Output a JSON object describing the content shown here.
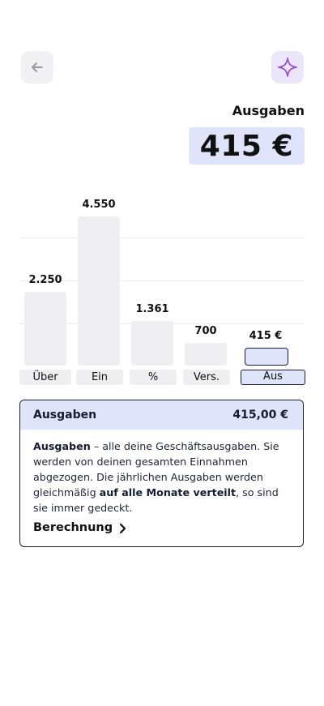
{
  "header": {
    "back_icon": "arrow-left-icon",
    "ai_icon": "sparkle-icon",
    "title": "Ausgaben",
    "amount": "415 €"
  },
  "chart_data": {
    "type": "bar",
    "categories": [
      "Über",
      "Ein",
      "%",
      "Vers.",
      "Aus"
    ],
    "values": [
      2250,
      4550,
      1361,
      700,
      415
    ],
    "value_labels": [
      "2.250",
      "4.550",
      "1.361",
      "700",
      "415 €"
    ],
    "selected": "Aus",
    "grid": true,
    "colors": {
      "bar": "#efeff2",
      "selected_bar": "#dfe4fb",
      "selected_border": "#1c1c3a"
    }
  },
  "card": {
    "title": "Ausgaben",
    "amount": "415,00 €",
    "desc_bold_1": "Ausgaben",
    "desc_text_1": " – alle deine Geschäftsausgaben. Sie werden von deinen gesamten Einnahmen abgezogen. Die jährlichen Ausgaben werden gleichmäßig ",
    "desc_bold_2": "auf alle Monate verteilt",
    "desc_text_2": ", so sind sie immer gedeckt.",
    "link_label": "Berechnung",
    "link_icon": "chevron-right-icon"
  },
  "colors": {
    "accent": "#dfe4fb",
    "ai_purple": "#9b4fd1"
  }
}
